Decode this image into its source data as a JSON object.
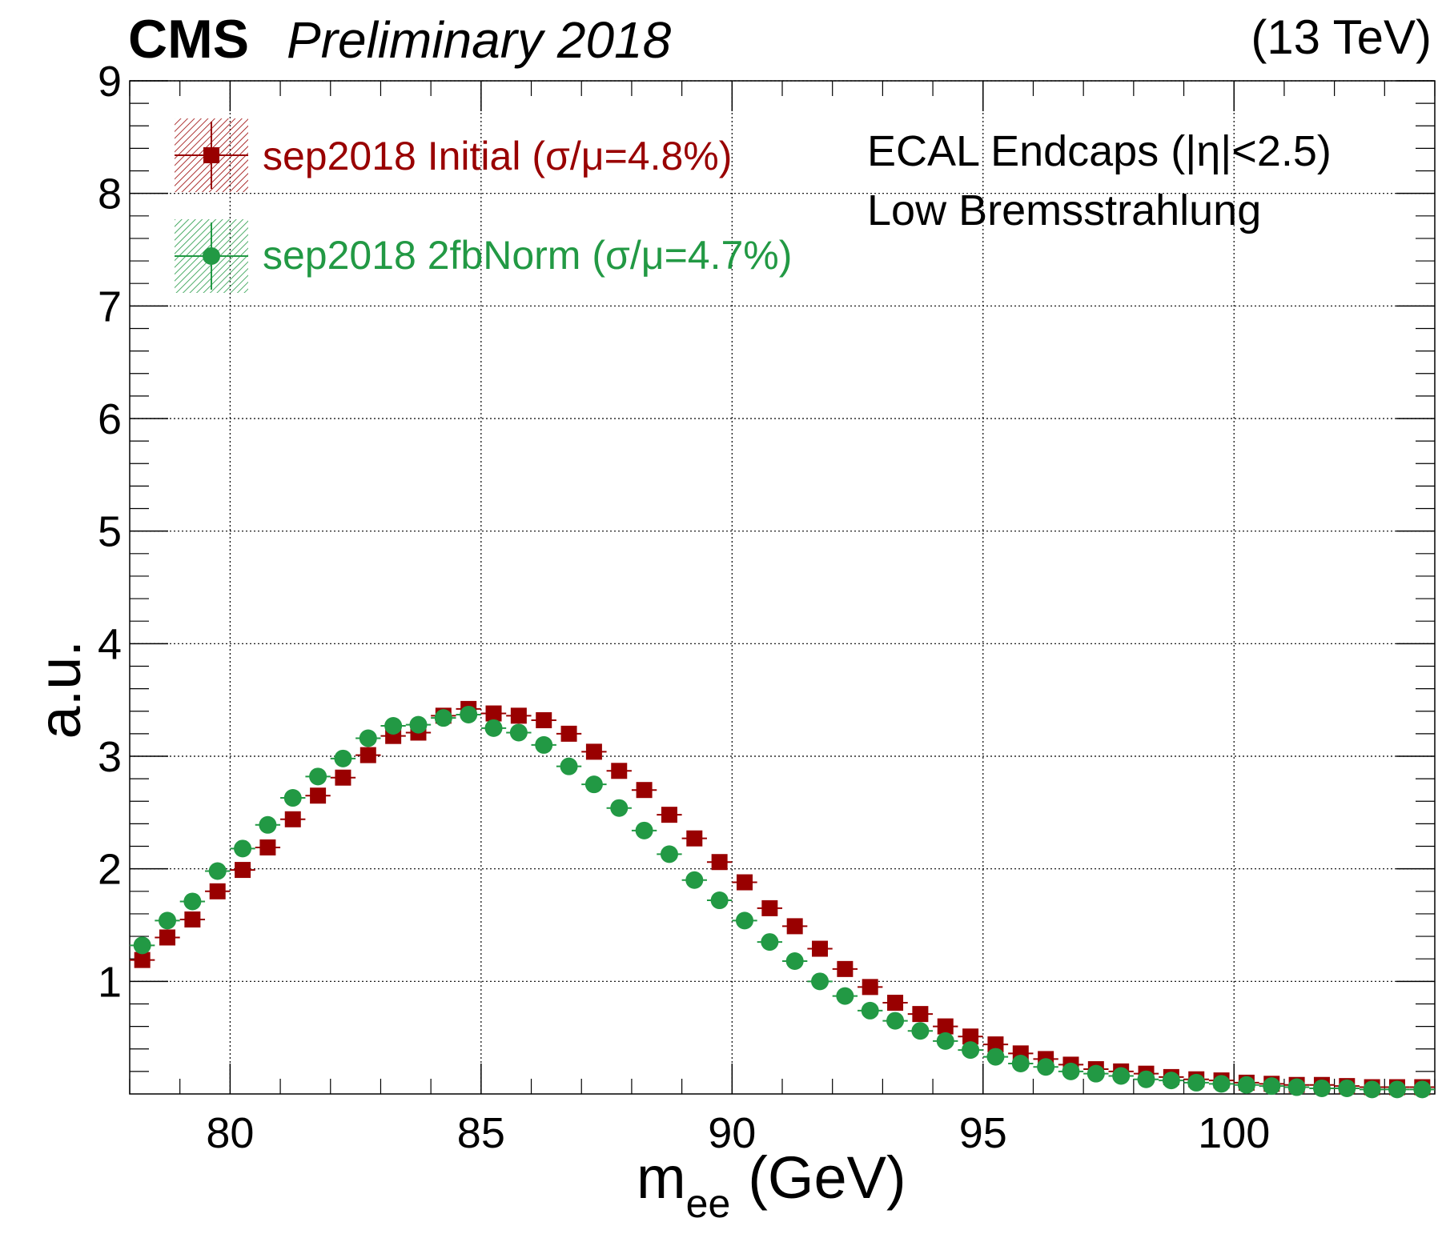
{
  "header": {
    "experiment": "CMS",
    "status": "Preliminary 2018",
    "energy": "(13 TeV)"
  },
  "annotations": {
    "line1": "ECAL Endcaps (|η|<2.5)",
    "line2": "Low Bremsstrahlung"
  },
  "colors": {
    "initial": "#990000",
    "norm": "#229944"
  },
  "chart_data": {
    "type": "scatter",
    "xlabel_main": "m",
    "xlabel_sub": "ee",
    "xlabel_unit": "(GeV)",
    "ylabel": "a.u.",
    "xlim": [
      78,
      104
    ],
    "ylim": [
      0,
      9
    ],
    "xticks": [
      80,
      85,
      90,
      95,
      100
    ],
    "yticks": [
      1,
      2,
      3,
      4,
      5,
      6,
      7,
      8,
      9
    ],
    "grid": true,
    "legend_position": "top-left",
    "x": [
      78.25,
      78.75,
      79.25,
      79.75,
      80.25,
      80.75,
      81.25,
      81.75,
      82.25,
      82.75,
      83.25,
      83.75,
      84.25,
      84.75,
      85.25,
      85.75,
      86.25,
      86.75,
      87.25,
      87.75,
      88.25,
      88.75,
      89.25,
      89.75,
      90.25,
      90.75,
      91.25,
      91.75,
      92.25,
      92.75,
      93.25,
      93.75,
      94.25,
      94.75,
      95.25,
      95.75,
      96.25,
      96.75,
      97.25,
      97.75,
      98.25,
      98.75,
      99.25,
      99.75,
      100.25,
      100.75,
      101.25,
      101.75,
      102.25,
      102.75,
      103.25,
      103.75
    ],
    "series": [
      {
        "name": "sep2018 Initial (σ/μ=4.8%)",
        "marker": "square",
        "values": [
          1.19,
          1.39,
          1.55,
          1.8,
          1.99,
          2.19,
          2.44,
          2.65,
          2.81,
          3.01,
          3.18,
          3.21,
          3.36,
          3.42,
          3.38,
          3.36,
          3.32,
          3.2,
          3.04,
          2.87,
          2.7,
          2.48,
          2.27,
          2.06,
          1.88,
          1.65,
          1.49,
          1.29,
          1.11,
          0.95,
          0.81,
          0.71,
          0.6,
          0.51,
          0.44,
          0.36,
          0.31,
          0.26,
          0.22,
          0.2,
          0.18,
          0.15,
          0.13,
          0.12,
          0.1,
          0.09,
          0.08,
          0.08,
          0.07,
          0.06,
          0.06,
          0.06
        ]
      },
      {
        "name": "sep2018 2fbNorm (σ/μ=4.7%)",
        "marker": "circle",
        "values": [
          1.32,
          1.54,
          1.71,
          1.98,
          2.18,
          2.39,
          2.63,
          2.82,
          2.98,
          3.16,
          3.27,
          3.28,
          3.34,
          3.37,
          3.25,
          3.21,
          3.1,
          2.91,
          2.75,
          2.54,
          2.34,
          2.13,
          1.9,
          1.72,
          1.54,
          1.35,
          1.18,
          1.0,
          0.87,
          0.74,
          0.65,
          0.56,
          0.47,
          0.39,
          0.33,
          0.27,
          0.24,
          0.2,
          0.18,
          0.16,
          0.13,
          0.12,
          0.1,
          0.09,
          0.08,
          0.07,
          0.06,
          0.05,
          0.05,
          0.04,
          0.04,
          0.04
        ]
      }
    ]
  }
}
